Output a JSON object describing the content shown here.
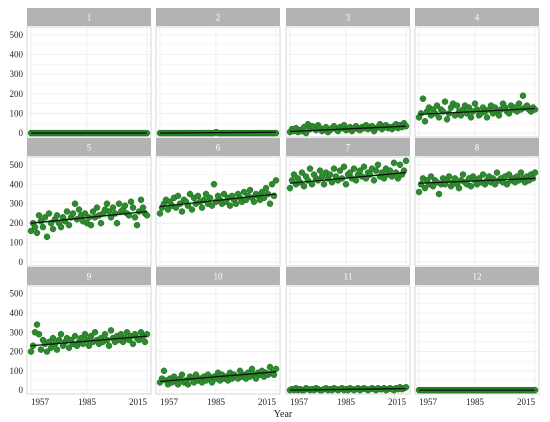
{
  "chart_data": {
    "type": "scatter",
    "layout": "facet-grid",
    "facet_labels": [
      "1",
      "2",
      "3",
      "4",
      "5",
      "6",
      "7",
      "8",
      "9",
      "10",
      "11",
      "12"
    ],
    "xlabel": "Year",
    "x_ticks": [
      1957,
      1985,
      2015
    ],
    "xlim": [
      1957,
      2015
    ],
    "y_ticks": [
      0,
      100,
      200,
      300,
      400,
      500
    ],
    "ylim": [
      -20,
      540
    ],
    "grid": true,
    "colors": {
      "point": "#2e8b2e",
      "point_edge": "#1d6a1d",
      "trend": "#111111",
      "band": "#aef2d6",
      "strip": "#b3b3b3",
      "grid": "#ececec",
      "panel_border": "#cccccc"
    },
    "facets": [
      {
        "label": "1",
        "trend": [
          0,
          0
        ],
        "y": [
          0,
          0,
          0,
          0,
          0,
          0,
          0,
          0,
          0,
          0,
          0,
          0,
          0,
          0,
          0,
          0,
          0,
          0,
          0,
          0,
          0,
          0,
          0,
          0,
          0,
          0,
          0,
          0,
          0,
          0,
          0,
          0,
          0,
          0,
          0,
          0,
          0,
          0,
          0,
          0,
          0,
          0,
          0,
          0,
          0,
          0,
          0,
          0,
          0,
          0,
          0,
          0,
          0,
          0,
          0,
          0,
          0,
          0,
          0
        ]
      },
      {
        "label": "2",
        "trend": [
          0,
          4
        ],
        "y": [
          0,
          0,
          0,
          0,
          0,
          0,
          0,
          0,
          0,
          0,
          0,
          0,
          0,
          0,
          0,
          0,
          0,
          0,
          0,
          0,
          0,
          0,
          0,
          0,
          0,
          0,
          0,
          0,
          5,
          0,
          0,
          0,
          0,
          0,
          0,
          0,
          0,
          0,
          0,
          0,
          0,
          0,
          0,
          0,
          0,
          0,
          0,
          0,
          0,
          0,
          0,
          0,
          0,
          0,
          0,
          0,
          0,
          0,
          0
        ]
      },
      {
        "label": "3",
        "trend": [
          8,
          35
        ],
        "y": [
          5,
          20,
          10,
          25,
          5,
          15,
          10,
          30,
          0,
          45,
          20,
          35,
          30,
          15,
          40,
          25,
          10,
          20,
          30,
          5,
          15,
          25,
          35,
          20,
          10,
          30,
          25,
          40,
          15,
          20,
          30,
          10,
          25,
          35,
          20,
          15,
          30,
          25,
          40,
          20,
          30,
          35,
          10,
          25,
          30,
          45,
          20,
          35,
          40,
          25,
          30,
          20,
          35,
          45,
          25,
          40,
          30,
          50,
          35
        ]
      },
      {
        "label": "4",
        "trend": [
          95,
          125
        ],
        "y": [
          80,
          100,
          175,
          60,
          110,
          130,
          90,
          120,
          100,
          140,
          80,
          120,
          110,
          160,
          70,
          100,
          130,
          150,
          90,
          140,
          110,
          90,
          120,
          140,
          100,
          130,
          80,
          110,
          150,
          120,
          90,
          100,
          130,
          110,
          80,
          120,
          140,
          100,
          130,
          110,
          90,
          120,
          150,
          130,
          110,
          100,
          140,
          120,
          130,
          110,
          150,
          120,
          190,
          130,
          140,
          120,
          110,
          130,
          120
        ]
      },
      {
        "label": "5",
        "trend": [
          200,
          260
        ],
        "y": [
          160,
          200,
          180,
          150,
          240,
          210,
          180,
          230,
          130,
          250,
          200,
          170,
          220,
          240,
          200,
          180,
          230,
          210,
          260,
          190,
          230,
          250,
          300,
          220,
          270,
          240,
          210,
          250,
          200,
          230,
          190,
          260,
          230,
          280,
          240,
          200,
          250,
          270,
          300,
          260,
          230,
          280,
          250,
          200,
          300,
          260,
          270,
          290,
          250,
          240,
          310,
          280,
          230,
          190,
          260,
          320,
          280,
          250,
          240
        ]
      },
      {
        "label": "6",
        "trend": [
          285,
          350
        ],
        "y": [
          250,
          280,
          300,
          320,
          270,
          310,
          290,
          330,
          280,
          340,
          300,
          260,
          320,
          310,
          290,
          350,
          270,
          330,
          300,
          340,
          310,
          280,
          320,
          350,
          300,
          330,
          290,
          400,
          310,
          340,
          320,
          300,
          350,
          310,
          330,
          290,
          340,
          320,
          300,
          350,
          330,
          310,
          360,
          320,
          340,
          370,
          330,
          310,
          350,
          340,
          320,
          360,
          330,
          380,
          350,
          300,
          400,
          340,
          420
        ]
      },
      {
        "label": "7",
        "trend": [
          405,
          460
        ],
        "y": [
          380,
          420,
          450,
          400,
          430,
          410,
          460,
          390,
          440,
          420,
          480,
          400,
          450,
          430,
          420,
          470,
          440,
          400,
          460,
          430,
          450,
          410,
          480,
          440,
          420,
          470,
          430,
          490,
          400,
          450,
          460,
          430,
          480,
          420,
          450,
          470,
          440,
          490,
          430,
          460,
          450,
          480,
          420,
          470,
          500,
          440,
          460,
          430,
          480,
          450,
          470,
          440,
          510,
          460,
          430,
          500,
          450,
          470,
          520
        ]
      },
      {
        "label": "8",
        "trend": [
          405,
          430
        ],
        "y": [
          360,
          400,
          430,
          380,
          420,
          400,
          440,
          390,
          420,
          410,
          350,
          400,
          430,
          400,
          420,
          440,
          390,
          410,
          430,
          400,
          380,
          420,
          450,
          410,
          400,
          430,
          390,
          440,
          420,
          400,
          430,
          410,
          450,
          400,
          420,
          440,
          410,
          430,
          400,
          460,
          420,
          430,
          410,
          440,
          400,
          450,
          420,
          430,
          410,
          440,
          420,
          460,
          430,
          410,
          440,
          420,
          450,
          430,
          460
        ]
      },
      {
        "label": "9",
        "trend": [
          230,
          280
        ],
        "y": [
          200,
          230,
          300,
          340,
          290,
          210,
          260,
          240,
          200,
          250,
          220,
          270,
          240,
          210,
          260,
          290,
          230,
          250,
          270,
          220,
          260,
          240,
          280,
          230,
          250,
          270,
          240,
          290,
          260,
          230,
          280,
          250,
          300,
          260,
          240,
          270,
          250,
          290,
          260,
          230,
          310,
          270,
          250,
          280,
          260,
          290,
          250,
          270,
          300,
          260,
          280,
          240,
          290,
          270,
          260,
          300,
          280,
          250,
          290
        ]
      },
      {
        "label": "10",
        "trend": [
          45,
          95
        ],
        "y": [
          40,
          60,
          100,
          50,
          30,
          60,
          40,
          70,
          50,
          30,
          60,
          80,
          40,
          50,
          30,
          70,
          60,
          40,
          80,
          50,
          60,
          40,
          70,
          50,
          80,
          60,
          40,
          70,
          60,
          90,
          50,
          80,
          60,
          70,
          50,
          90,
          60,
          80,
          70,
          60,
          100,
          70,
          80,
          60,
          90,
          70,
          110,
          80,
          60,
          90,
          80,
          100,
          70,
          90,
          80,
          120,
          90,
          80,
          110
        ]
      },
      {
        "label": "11",
        "trend": [
          0,
          8
        ],
        "y": [
          0,
          5,
          0,
          10,
          0,
          5,
          0,
          0,
          10,
          5,
          0,
          5,
          0,
          10,
          5,
          0,
          0,
          5,
          10,
          0,
          5,
          0,
          10,
          5,
          0,
          5,
          10,
          0,
          5,
          0,
          10,
          5,
          0,
          5,
          10,
          0,
          5,
          10,
          5,
          0,
          5,
          10,
          5,
          0,
          10,
          5,
          5,
          10,
          0,
          5,
          10,
          5,
          0,
          10,
          5,
          15,
          5,
          10,
          15
        ]
      },
      {
        "label": "12",
        "trend": [
          0,
          0
        ],
        "y": [
          0,
          0,
          0,
          0,
          0,
          0,
          0,
          0,
          0,
          0,
          0,
          0,
          0,
          0,
          0,
          0,
          0,
          0,
          0,
          0,
          0,
          0,
          0,
          0,
          0,
          0,
          0,
          0,
          0,
          0,
          0,
          0,
          0,
          0,
          0,
          0,
          0,
          0,
          0,
          0,
          0,
          0,
          0,
          0,
          0,
          0,
          0,
          0,
          0,
          0,
          0,
          0,
          0,
          0,
          0,
          0,
          0,
          0,
          0
        ]
      }
    ]
  }
}
